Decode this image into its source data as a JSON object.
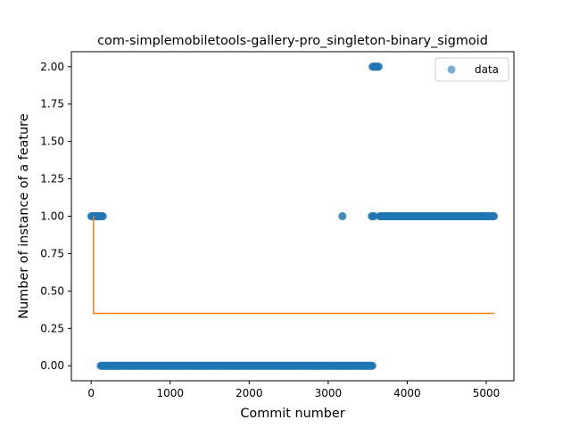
{
  "chart_data": {
    "type": "scatter",
    "title": "com-simplemobiletools-gallery-pro_singleton-binary_sigmoid",
    "xlabel": "Commit number",
    "ylabel": "Number of instance of a feature",
    "xlim": [
      -250,
      5350
    ],
    "ylim": [
      -0.1,
      2.1
    ],
    "xticks": [
      0,
      1000,
      2000,
      3000,
      4000,
      5000
    ],
    "yticks": [
      0.0,
      0.25,
      0.5,
      0.75,
      1.0,
      1.25,
      1.5,
      1.75,
      2.0
    ],
    "xtick_labels": [
      "0",
      "1000",
      "2000",
      "3000",
      "4000",
      "5000"
    ],
    "ytick_labels": [
      "0.00",
      "0.25",
      "0.50",
      "0.75",
      "1.00",
      "1.25",
      "1.50",
      "1.75",
      "2.00"
    ],
    "grid": false,
    "legend": {
      "placement": "top-right",
      "entries": [
        "data"
      ]
    },
    "series": [
      {
        "name": "data",
        "kind": "scatter",
        "color": "#1f77b4",
        "alpha": 0.6,
        "segments": [
          {
            "x_start": 0,
            "x_end": 150,
            "y": 1.0
          },
          {
            "x_start": 120,
            "x_end": 3560,
            "y": 0.0
          },
          {
            "x_start": 3180,
            "x_end": 3180,
            "y": 1.0
          },
          {
            "x_start": 3550,
            "x_end": 3580,
            "y": 1.0
          },
          {
            "x_start": 3560,
            "x_end": 3640,
            "y": 2.0
          },
          {
            "x_start": 3650,
            "x_end": 5100,
            "y": 1.0
          }
        ]
      },
      {
        "kind": "line",
        "color": "#ff7f0e",
        "points": [
          [
            30,
            1.0
          ],
          [
            30,
            0.35
          ],
          [
            5100,
            0.35
          ]
        ]
      }
    ]
  }
}
